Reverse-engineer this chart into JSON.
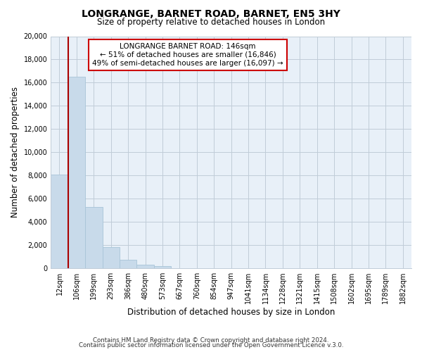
{
  "title": "LONGRANGE, BARNET ROAD, BARNET, EN5 3HY",
  "subtitle": "Size of property relative to detached houses in London",
  "xlabel": "Distribution of detached houses by size in London",
  "ylabel": "Number of detached properties",
  "bar_color": "#c8daea",
  "bar_edge_color": "#a8c4d8",
  "plot_bg_color": "#e8f0f8",
  "categories": [
    "12sqm",
    "106sqm",
    "199sqm",
    "293sqm",
    "386sqm",
    "480sqm",
    "573sqm",
    "667sqm",
    "760sqm",
    "854sqm",
    "947sqm",
    "1041sqm",
    "1134sqm",
    "1228sqm",
    "1321sqm",
    "1415sqm",
    "1508sqm",
    "1602sqm",
    "1695sqm",
    "1789sqm",
    "1882sqm"
  ],
  "values": [
    8100,
    16500,
    5300,
    1850,
    750,
    300,
    200,
    0,
    0,
    0,
    0,
    0,
    0,
    0,
    0,
    0,
    0,
    0,
    0,
    0,
    0
  ],
  "ylim": [
    0,
    20000
  ],
  "yticks": [
    0,
    2000,
    4000,
    6000,
    8000,
    10000,
    12000,
    14000,
    16000,
    18000,
    20000
  ],
  "annotation_title": "LONGRANGE BARNET ROAD: 146sqm",
  "annotation_line1": "← 51% of detached houses are smaller (16,846)",
  "annotation_line2": "49% of semi-detached houses are larger (16,097) →",
  "red_line_x": 0.5,
  "footer1": "Contains HM Land Registry data © Crown copyright and database right 2024.",
  "footer2": "Contains public sector information licensed under the Open Government Licence v.3.0.",
  "annotation_box_color": "#ffffff",
  "annotation_box_edge": "#cc0000",
  "red_line_color": "#aa0000",
  "background_color": "#ffffff",
  "grid_color": "#c0ccd8"
}
